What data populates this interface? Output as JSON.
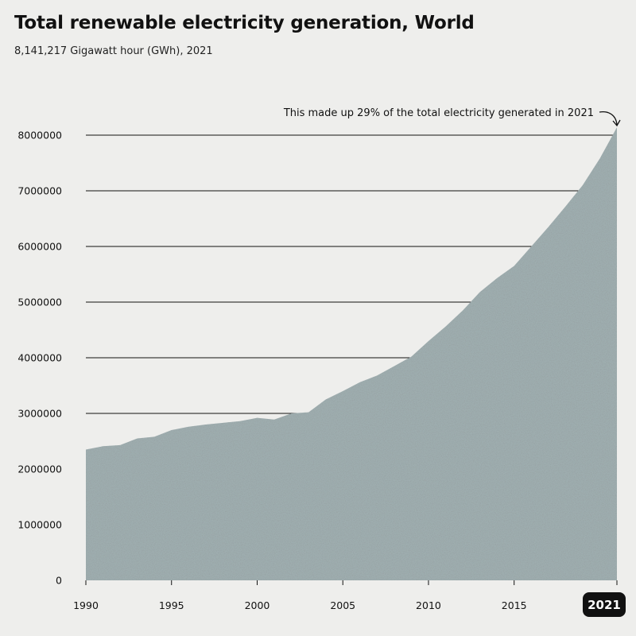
{
  "title": "Total renewable electricity generation, World",
  "subtitle": "8,141,217 Gigawatt hour (GWh), 2021",
  "annotation": "This made up 29% of the total electricity generated in 2021",
  "highlight_year": "2021",
  "colors": {
    "area": "#9eadaf",
    "background": "#eeeeec",
    "gridline": "#111111",
    "badge": "#111111"
  },
  "chart_data": {
    "type": "area",
    "title": "Total renewable electricity generation, World",
    "subtitle": "8,141,217 Gigawatt hour (GWh), 2021",
    "xlabel": "",
    "ylabel": "",
    "xlim": [
      1990,
      2021
    ],
    "ylim": [
      0,
      8000000
    ],
    "grid": true,
    "x_ticks": [
      "1990",
      "1995",
      "2000",
      "2005",
      "2010",
      "2015",
      "2021"
    ],
    "y_ticks": [
      "0",
      "1000000",
      "2000000",
      "3000000",
      "4000000",
      "5000000",
      "6000000",
      "7000000",
      "8000000"
    ],
    "series": [
      {
        "x": [
          1990,
          1991,
          1992,
          1993,
          1994,
          1995,
          1996,
          1997,
          1998,
          1999,
          2000,
          2001,
          2002,
          2003,
          2004,
          2005,
          2006,
          2007,
          2008,
          2009,
          2010,
          2011,
          2012,
          2013,
          2014,
          2015,
          2016,
          2017,
          2018,
          2019,
          2020,
          2021
        ],
        "values": [
          2350000,
          2410000,
          2430000,
          2550000,
          2580000,
          2700000,
          2760000,
          2800000,
          2830000,
          2860000,
          2920000,
          2890000,
          3000000,
          3020000,
          3250000,
          3400000,
          3560000,
          3680000,
          3850000,
          4020000,
          4300000,
          4560000,
          4850000,
          5180000,
          5430000,
          5650000,
          6000000,
          6350000,
          6720000,
          7100000,
          7580000,
          8141217
        ]
      }
    ]
  }
}
